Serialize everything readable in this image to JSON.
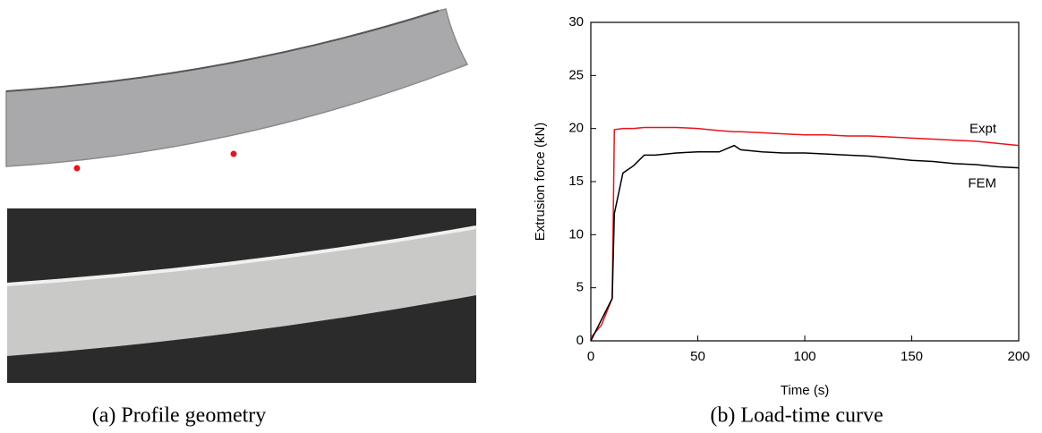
{
  "chart_data": {
    "type": "line",
    "xlabel": "Time (s)",
    "ylabel": "Extrusion force (kN)",
    "x": [
      0,
      5,
      10,
      11,
      15,
      20,
      25,
      30,
      40,
      50,
      60,
      67,
      70,
      80,
      90,
      100,
      110,
      120,
      130,
      140,
      150,
      160,
      170,
      180,
      190,
      200
    ],
    "series": [
      {
        "name": "Expt",
        "color": "#e8141b",
        "values": [
          0.3,
          1.5,
          4,
          19.9,
          20,
          20,
          20.1,
          20.1,
          20.1,
          20,
          19.8,
          19.7,
          19.7,
          19.6,
          19.5,
          19.4,
          19.4,
          19.3,
          19.3,
          19.2,
          19.1,
          19,
          18.9,
          18.8,
          18.6,
          18.4
        ]
      },
      {
        "name": "FEM",
        "color": "#000000",
        "values": [
          0,
          2,
          4,
          12,
          15.8,
          16.5,
          17.5,
          17.5,
          17.7,
          17.8,
          17.8,
          18.4,
          18,
          17.8,
          17.7,
          17.7,
          17.6,
          17.5,
          17.4,
          17.2,
          17,
          16.9,
          16.7,
          16.6,
          16.4,
          16.3
        ]
      }
    ],
    "xlim": [
      0,
      200
    ],
    "xticks": [
      0,
      50,
      100,
      150,
      200
    ],
    "ylim": [
      0,
      30
    ],
    "yticks": [
      0,
      5,
      10,
      15,
      20,
      25,
      30
    ]
  },
  "captions": [
    "(a) Profile geometry",
    "(b) Load-time curve"
  ]
}
